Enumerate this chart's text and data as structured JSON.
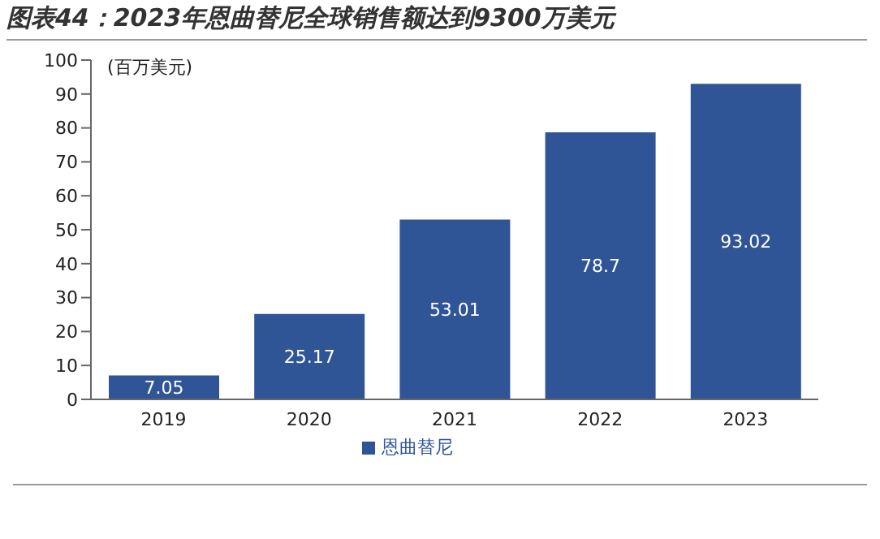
{
  "chart_data": {
    "type": "bar",
    "title": "图表44：2023年恩曲替尼全球销售额达到9300万美元",
    "ylabel": "(百万美元)",
    "categories": [
      "2019",
      "2020",
      "2021",
      "2022",
      "2023"
    ],
    "series": [
      {
        "name": "恩曲替尼",
        "color": "#2f5597",
        "values": [
          7.05,
          25.17,
          53.01,
          78.7,
          93.02
        ]
      }
    ],
    "ylim": [
      0,
      100
    ],
    "yticks": [
      0,
      10,
      20,
      30,
      40,
      50,
      60,
      70,
      80,
      90,
      100
    ],
    "grid": false,
    "legend": "bottom",
    "data_labels": true
  }
}
